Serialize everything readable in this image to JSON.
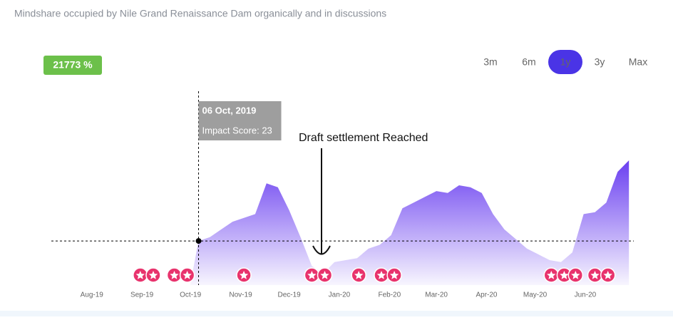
{
  "subtitle": "Mindshare occupied by Nile Grand Renaissance Dam organically and in discussions",
  "badge": "21773 %",
  "ranges": [
    "3m",
    "6m",
    "1y",
    "3y",
    "Max"
  ],
  "chart_data": {
    "type": "area",
    "color": "#6a3ff0",
    "x": [
      "2019-10-01",
      "2019-10-06",
      "2019-10-13",
      "2019-10-20",
      "2019-10-27",
      "2019-11-03",
      "2019-11-10",
      "2019-11-17",
      "2019-11-24",
      "2019-12-01",
      "2019-12-08",
      "2019-12-15",
      "2019-12-22",
      "2019-12-29",
      "2020-01-05",
      "2020-01-12",
      "2020-01-19",
      "2020-01-26",
      "2020-02-02",
      "2020-02-09",
      "2020-02-16",
      "2020-02-23",
      "2020-03-01",
      "2020-03-08",
      "2020-03-15",
      "2020-03-22",
      "2020-03-29",
      "2020-04-05",
      "2020-04-12",
      "2020-04-19",
      "2020-04-26",
      "2020-05-03",
      "2020-05-10",
      "2020-05-17",
      "2020-05-24",
      "2020-05-31",
      "2020-06-07",
      "2020-06-14",
      "2020-06-21",
      "2020-06-28"
    ],
    "values": [
      1,
      23,
      25,
      29,
      33,
      35,
      37,
      53,
      51,
      39,
      25,
      10,
      6,
      12,
      13,
      14,
      19,
      21,
      26,
      40,
      43,
      46,
      49,
      48,
      52,
      51,
      48,
      37,
      29,
      24,
      19,
      16,
      13,
      12,
      17,
      37,
      38,
      43,
      59,
      65
    ],
    "xlim": [
      "2019-07-07",
      "2020-07-01"
    ],
    "ylim": [
      0,
      104
    ],
    "xticks": [
      {
        "value": "2019-08-01",
        "label": "Aug-19"
      },
      {
        "value": "2019-09-01",
        "label": "Sep-19"
      },
      {
        "value": "2019-10-01",
        "label": "Oct-19"
      },
      {
        "value": "2019-11-01",
        "label": "Nov-19"
      },
      {
        "value": "2019-12-01",
        "label": "Dec-19"
      },
      {
        "value": "2020-01-01",
        "label": "Jan-20"
      },
      {
        "value": "2020-02-01",
        "label": "Feb-20"
      },
      {
        "value": "2020-03-01",
        "label": "Mar-20"
      },
      {
        "value": "2020-04-01",
        "label": "Apr-20"
      },
      {
        "value": "2020-05-01",
        "label": "May-20"
      },
      {
        "value": "2020-06-01",
        "label": "Jun-20"
      }
    ],
    "markers": [
      "2019-08-31",
      "2019-09-08",
      "2019-09-21",
      "2019-09-29",
      "2019-11-03",
      "2019-12-15",
      "2019-12-23",
      "2020-01-13",
      "2020-01-27",
      "2020-02-04",
      "2020-05-11",
      "2020-05-19",
      "2020-05-26",
      "2020-06-07",
      "2020-06-15"
    ],
    "marker_color": "#e8336d",
    "tooltip": {
      "date_label": "06 Oct, 2019",
      "x": "2019-10-06",
      "label": "Impact Score: 23",
      "value": 23
    },
    "annotation": {
      "text": "Draft settlement Reached",
      "x": "2019-12-21"
    }
  }
}
